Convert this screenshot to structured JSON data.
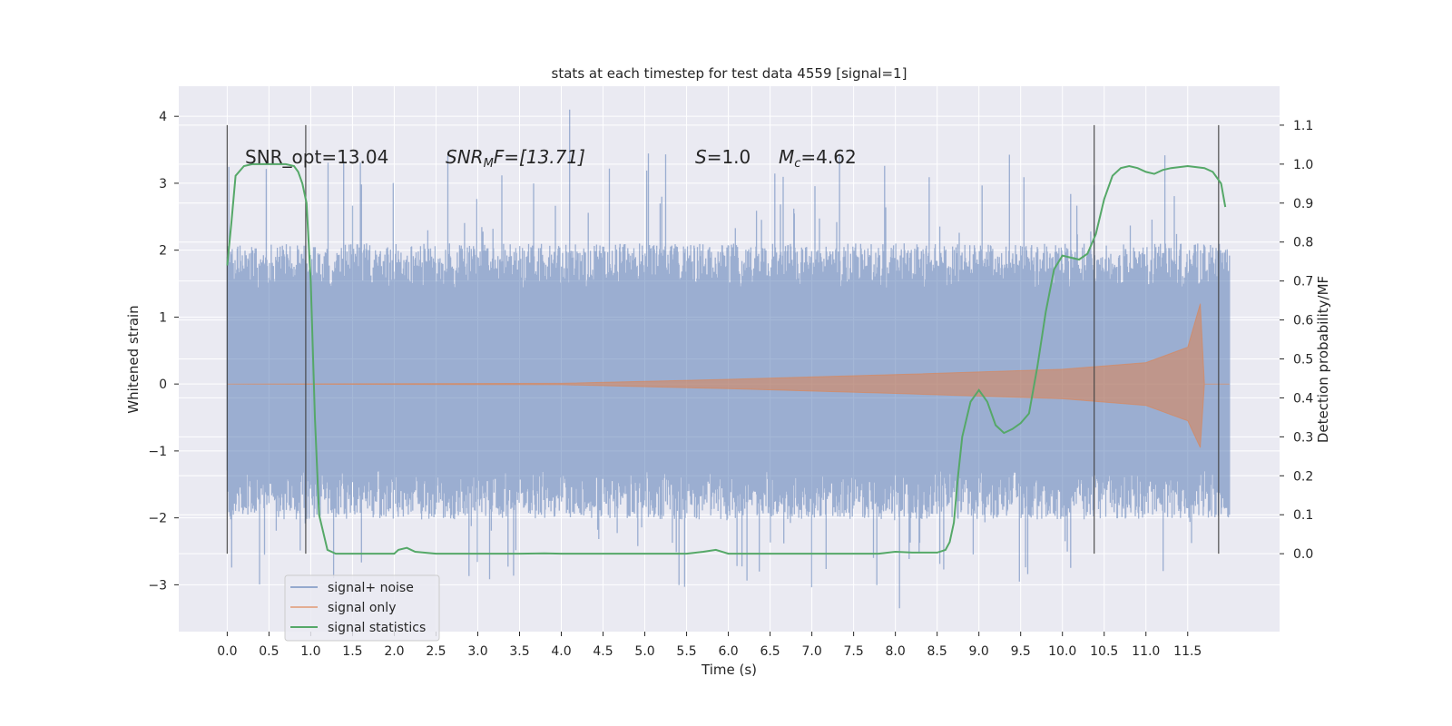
{
  "chart_data": {
    "type": "line",
    "title": "stats at each timestep for test data 4559 [signal=1]",
    "xlabel": "Time (s)",
    "ylabel": "Whitened strain",
    "ylabel_right": "Detection probability/MF",
    "xlim": [
      -0.58,
      12.6
    ],
    "ylim": [
      -3.7,
      4.45
    ],
    "ylim_right": [
      -0.2,
      1.2
    ],
    "grid": true,
    "x_ticks": [
      "0.0",
      "0.5",
      "1.0",
      "1.5",
      "2.0",
      "2.5",
      "3.0",
      "3.5",
      "4.0",
      "4.5",
      "5.0",
      "5.5",
      "6.0",
      "6.5",
      "7.0",
      "7.5",
      "8.0",
      "8.5",
      "9.0",
      "9.5",
      "10.0",
      "10.5",
      "11.0",
      "11.5"
    ],
    "y_ticks": [
      "−3",
      "−2",
      "−1",
      "0",
      "1",
      "2",
      "3",
      "4"
    ],
    "y_ticks_right": [
      "0.0",
      "0.1",
      "0.2",
      "0.3",
      "0.4",
      "0.5",
      "0.6",
      "0.7",
      "0.8",
      "0.9",
      "1.0",
      "1.1"
    ],
    "legend_position": "lower left",
    "annotations": {
      "snr_opt": "SNR_opt=13.04",
      "snr_mf_base": "SNR",
      "snr_mf_sub": "M",
      "snr_mf_rest": "F=[13.71]",
      "s_italic": "S",
      "s_rest": "=1.0",
      "mc_italic": "M",
      "mc_sub": "c",
      "mc_rest": "=4.62"
    },
    "series": [
      {
        "name": "signal+ noise",
        "color": "#4c72b0",
        "description_kind": "noise",
        "x_range": [
          0.0,
          12.0
        ],
        "typical_band": [
          -1.35,
          1.5
        ],
        "peak_max": 4.1,
        "peak_min": -3.35
      },
      {
        "name": "signal only",
        "color": "#dd8452",
        "description_kind": "chirp",
        "x_range": [
          0.0,
          12.0
        ],
        "envelope": {
          "x": [
            0.0,
            4.0,
            6.0,
            8.0,
            10.0,
            11.0,
            11.5,
            11.65,
            11.7,
            12.0
          ],
          "upper": [
            0.0,
            0.01,
            0.07,
            0.14,
            0.22,
            0.32,
            0.55,
            1.2,
            0.0,
            0.0
          ],
          "lower": [
            0.0,
            -0.01,
            -0.07,
            -0.14,
            -0.22,
            -0.32,
            -0.55,
            -0.95,
            0.0,
            0.0
          ]
        }
      },
      {
        "name": "signal statistics",
        "color": "#55a868",
        "axis": "right",
        "x": [
          0.0,
          0.05,
          0.1,
          0.2,
          0.3,
          0.5,
          0.7,
          0.8,
          0.85,
          0.9,
          0.95,
          1.0,
          1.05,
          1.1,
          1.2,
          1.3,
          1.5,
          1.8,
          1.9,
          2.0,
          2.05,
          2.15,
          2.25,
          2.5,
          3.0,
          3.5,
          3.8,
          4.0,
          4.5,
          5.0,
          5.5,
          5.7,
          5.85,
          6.0,
          6.5,
          7.0,
          7.5,
          7.8,
          8.0,
          8.2,
          8.5,
          8.6,
          8.65,
          8.7,
          8.75,
          8.8,
          8.9,
          9.0,
          9.1,
          9.2,
          9.3,
          9.4,
          9.5,
          9.6,
          9.7,
          9.8,
          9.9,
          10.0,
          10.1,
          10.2,
          10.3,
          10.4,
          10.5,
          10.6,
          10.7,
          10.8,
          10.9,
          11.0,
          11.1,
          11.2,
          11.3,
          11.5,
          11.7,
          11.8,
          11.9,
          11.95
        ],
        "values": [
          0.74,
          0.85,
          0.97,
          0.995,
          1.0,
          1.0,
          1.0,
          0.995,
          0.98,
          0.95,
          0.9,
          0.7,
          0.35,
          0.1,
          0.01,
          0.0,
          0.0,
          0.0,
          0.0,
          0.0,
          0.01,
          0.015,
          0.005,
          0.0,
          0.0,
          0.0,
          0.001,
          0.0,
          0.0,
          0.0,
          0.0,
          0.005,
          0.01,
          0.0,
          0.0,
          0.0,
          0.0,
          0.0,
          0.005,
          0.003,
          0.003,
          0.01,
          0.03,
          0.08,
          0.2,
          0.3,
          0.39,
          0.42,
          0.39,
          0.33,
          0.31,
          0.32,
          0.335,
          0.36,
          0.48,
          0.62,
          0.73,
          0.765,
          0.76,
          0.755,
          0.77,
          0.82,
          0.91,
          0.97,
          0.99,
          0.995,
          0.99,
          0.98,
          0.975,
          0.985,
          0.99,
          0.995,
          0.99,
          0.98,
          0.95,
          0.89
        ]
      }
    ],
    "vertical_lines": [
      0.0,
      0.94,
      10.38,
      11.87
    ]
  }
}
